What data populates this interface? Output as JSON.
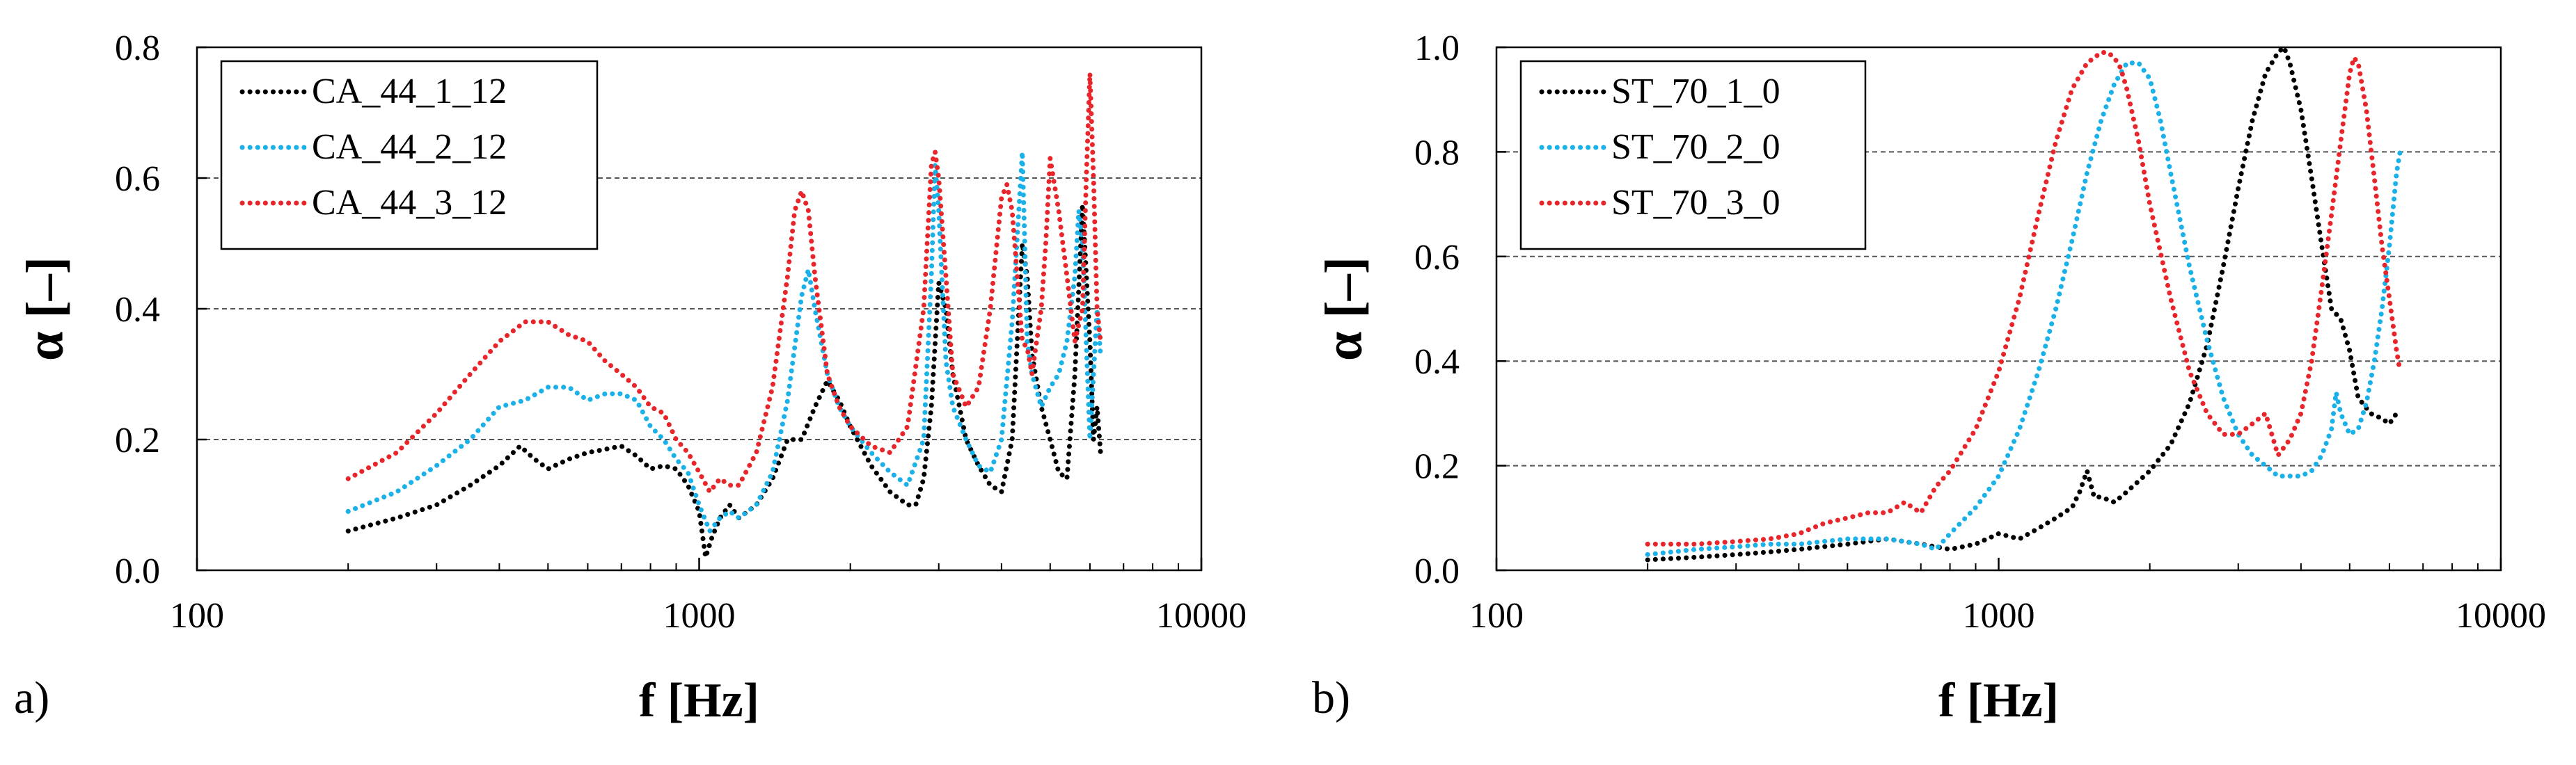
{
  "chart_data": [
    {
      "type": "line",
      "panel_label": "a)",
      "xlabel": "f [Hz]",
      "ylabel": "α [–]",
      "xscale": "log",
      "xlim": [
        100,
        10000
      ],
      "ylim": [
        0,
        0.8
      ],
      "xticks": [
        100,
        1000,
        10000
      ],
      "xtick_labels": [
        "100",
        "1000",
        "10000"
      ],
      "yticks": [
        0,
        0.2,
        0.4,
        0.6,
        0.8
      ],
      "ytick_labels": [
        "0.0",
        "0.2",
        "0.4",
        "0.6",
        "0.8"
      ],
      "grid": "horizontal dashed",
      "legend_position": "top-left",
      "series": [
        {
          "name": "CA_44_1_12",
          "color": "#000000",
          "x": [
            200,
            250,
            300,
            350,
            400,
            440,
            470,
            500,
            550,
            600,
            650,
            700,
            750,
            800,
            850,
            900,
            950,
            1000,
            1030,
            1060,
            1100,
            1150,
            1200,
            1300,
            1400,
            1500,
            1600,
            1700,
            1800,
            1900,
            2000,
            2200,
            2400,
            2600,
            2700,
            2800,
            2900,
            3000,
            3100,
            3200,
            3400,
            3600,
            3800,
            4000,
            4200,
            4400,
            4500,
            4600,
            4800,
            5000,
            5200,
            5400,
            5600,
            5800,
            6000,
            6100,
            6200,
            6300
          ],
          "y": [
            0.06,
            0.08,
            0.1,
            0.13,
            0.16,
            0.19,
            0.17,
            0.155,
            0.17,
            0.18,
            0.185,
            0.19,
            0.175,
            0.155,
            0.16,
            0.155,
            0.13,
            0.09,
            0.02,
            0.05,
            0.08,
            0.1,
            0.08,
            0.1,
            0.14,
            0.2,
            0.2,
            0.25,
            0.29,
            0.26,
            0.22,
            0.16,
            0.12,
            0.1,
            0.1,
            0.14,
            0.25,
            0.44,
            0.4,
            0.3,
            0.2,
            0.16,
            0.13,
            0.12,
            0.2,
            0.5,
            0.45,
            0.33,
            0.25,
            0.2,
            0.15,
            0.14,
            0.3,
            0.56,
            0.35,
            0.2,
            0.25,
            0.18
          ]
        },
        {
          "name": "CA_44_2_12",
          "color": "#1AB0E8",
          "x": [
            200,
            250,
            300,
            350,
            400,
            450,
            500,
            550,
            600,
            650,
            700,
            750,
            800,
            850,
            900,
            950,
            1000,
            1050,
            1100,
            1150,
            1200,
            1300,
            1400,
            1500,
            1600,
            1650,
            1700,
            1800,
            1900,
            2000,
            2200,
            2400,
            2600,
            2800,
            2900,
            2950,
            3000,
            3100,
            3200,
            3400,
            3600,
            3800,
            4000,
            4200,
            4400,
            4450,
            4500,
            4600,
            4800,
            5000,
            5200,
            5400,
            5600,
            5700,
            5800,
            6000,
            6100,
            6200,
            6300
          ],
          "y": [
            0.09,
            0.12,
            0.16,
            0.2,
            0.25,
            0.26,
            0.28,
            0.28,
            0.26,
            0.27,
            0.27,
            0.26,
            0.22,
            0.2,
            0.17,
            0.15,
            0.1,
            0.06,
            0.08,
            0.09,
            0.08,
            0.1,
            0.15,
            0.26,
            0.42,
            0.46,
            0.4,
            0.3,
            0.25,
            0.22,
            0.18,
            0.15,
            0.13,
            0.2,
            0.45,
            0.62,
            0.55,
            0.32,
            0.25,
            0.2,
            0.16,
            0.15,
            0.2,
            0.38,
            0.64,
            0.5,
            0.35,
            0.3,
            0.25,
            0.28,
            0.3,
            0.35,
            0.45,
            0.55,
            0.5,
            0.2,
            0.3,
            0.4,
            0.33
          ]
        },
        {
          "name": "CA_44_3_12",
          "color": "#E8252A",
          "x": [
            200,
            250,
            300,
            350,
            400,
            450,
            500,
            550,
            600,
            650,
            700,
            750,
            800,
            850,
            900,
            950,
            1000,
            1050,
            1100,
            1150,
            1200,
            1300,
            1400,
            1500,
            1550,
            1600,
            1650,
            1700,
            1800,
            1900,
            2000,
            2200,
            2400,
            2600,
            2800,
            2900,
            2950,
            3000,
            3100,
            3200,
            3400,
            3600,
            3800,
            4000,
            4100,
            4200,
            4300,
            4400,
            4500,
            4600,
            4800,
            4900,
            5000,
            5200,
            5400,
            5600,
            5800,
            5900,
            6000,
            6100,
            6200,
            6300
          ],
          "y": [
            0.14,
            0.18,
            0.24,
            0.3,
            0.35,
            0.38,
            0.38,
            0.36,
            0.35,
            0.32,
            0.3,
            0.28,
            0.25,
            0.24,
            0.2,
            0.18,
            0.15,
            0.12,
            0.14,
            0.13,
            0.13,
            0.18,
            0.28,
            0.45,
            0.55,
            0.58,
            0.55,
            0.45,
            0.3,
            0.25,
            0.22,
            0.19,
            0.18,
            0.22,
            0.4,
            0.62,
            0.64,
            0.6,
            0.45,
            0.3,
            0.25,
            0.28,
            0.4,
            0.57,
            0.59,
            0.55,
            0.45,
            0.35,
            0.34,
            0.3,
            0.4,
            0.5,
            0.63,
            0.55,
            0.45,
            0.35,
            0.4,
            0.6,
            0.76,
            0.6,
            0.4,
            0.35
          ]
        }
      ]
    },
    {
      "type": "line",
      "panel_label": "b)",
      "xlabel": "f [Hz]",
      "ylabel": "α [–]",
      "xscale": "log",
      "xlim": [
        100,
        10000
      ],
      "ylim": [
        0,
        1.0
      ],
      "xticks": [
        100,
        1000,
        10000
      ],
      "xtick_labels": [
        "100",
        "1000",
        "10000"
      ],
      "yticks": [
        0,
        0.2,
        0.4,
        0.6,
        0.8,
        1.0
      ],
      "ytick_labels": [
        "0.0",
        "0.2",
        "0.4",
        "0.6",
        "0.8",
        "1.0"
      ],
      "grid": "horizontal dashed",
      "legend_position": "top-left",
      "series": [
        {
          "name": "ST_70_1_0",
          "color": "#000000",
          "x": [
            200,
            250,
            300,
            350,
            400,
            500,
            600,
            700,
            800,
            900,
            1000,
            1100,
            1200,
            1300,
            1400,
            1450,
            1500,
            1550,
            1600,
            1700,
            1800,
            2000,
            2200,
            2400,
            2600,
            2800,
            3000,
            3200,
            3400,
            3600,
            3700,
            3800,
            4000,
            4200,
            4400,
            4600,
            4800,
            5000,
            5200,
            5500,
            5800,
            6000,
            6200,
            6300
          ],
          "y": [
            0.02,
            0.025,
            0.03,
            0.035,
            0.04,
            0.05,
            0.06,
            0.05,
            0.04,
            0.05,
            0.07,
            0.06,
            0.08,
            0.1,
            0.12,
            0.15,
            0.19,
            0.14,
            0.14,
            0.13,
            0.15,
            0.19,
            0.24,
            0.32,
            0.43,
            0.58,
            0.73,
            0.86,
            0.95,
            0.99,
            1.0,
            0.97,
            0.88,
            0.75,
            0.62,
            0.5,
            0.48,
            0.42,
            0.33,
            0.3,
            0.29,
            0.28,
            0.3,
            0.3
          ]
        },
        {
          "name": "ST_70_2_0",
          "color": "#1AB0E8",
          "x": [
            200,
            250,
            300,
            350,
            400,
            500,
            600,
            700,
            750,
            800,
            900,
            1000,
            1100,
            1200,
            1300,
            1400,
            1500,
            1600,
            1700,
            1800,
            1850,
            1900,
            2000,
            2100,
            2200,
            2400,
            2600,
            2800,
            3000,
            3200,
            3400,
            3600,
            3800,
            4000,
            4200,
            4400,
            4600,
            4700,
            4800,
            5000,
            5200,
            5400,
            5600,
            5800,
            6000,
            6200,
            6300
          ],
          "y": [
            0.03,
            0.04,
            0.045,
            0.05,
            0.05,
            0.06,
            0.06,
            0.05,
            0.04,
            0.07,
            0.12,
            0.18,
            0.27,
            0.38,
            0.5,
            0.63,
            0.76,
            0.86,
            0.93,
            0.97,
            0.97,
            0.97,
            0.94,
            0.86,
            0.76,
            0.58,
            0.44,
            0.33,
            0.26,
            0.22,
            0.2,
            0.18,
            0.18,
            0.18,
            0.19,
            0.22,
            0.27,
            0.34,
            0.3,
            0.26,
            0.27,
            0.32,
            0.4,
            0.5,
            0.62,
            0.76,
            0.8
          ]
        },
        {
          "name": "ST_70_3_0",
          "color": "#E8252A",
          "x": [
            200,
            250,
            300,
            350,
            400,
            450,
            500,
            550,
            600,
            650,
            700,
            750,
            800,
            900,
            1000,
            1100,
            1200,
            1300,
            1400,
            1500,
            1600,
            1650,
            1700,
            1750,
            1800,
            1900,
            2000,
            2200,
            2400,
            2600,
            2800,
            3000,
            3200,
            3400,
            3600,
            3800,
            4000,
            4200,
            4400,
            4600,
            4800,
            5000,
            5100,
            5200,
            5400,
            5600,
            5800,
            6000,
            6200,
            6300
          ],
          "y": [
            0.05,
            0.05,
            0.055,
            0.06,
            0.07,
            0.09,
            0.1,
            0.11,
            0.11,
            0.13,
            0.11,
            0.16,
            0.19,
            0.27,
            0.38,
            0.52,
            0.68,
            0.82,
            0.92,
            0.97,
            0.99,
            0.99,
            0.98,
            0.96,
            0.92,
            0.82,
            0.7,
            0.52,
            0.38,
            0.3,
            0.26,
            0.26,
            0.28,
            0.3,
            0.22,
            0.25,
            0.3,
            0.4,
            0.54,
            0.68,
            0.82,
            0.95,
            0.98,
            0.97,
            0.88,
            0.75,
            0.62,
            0.52,
            0.42,
            0.38
          ]
        }
      ]
    }
  ]
}
